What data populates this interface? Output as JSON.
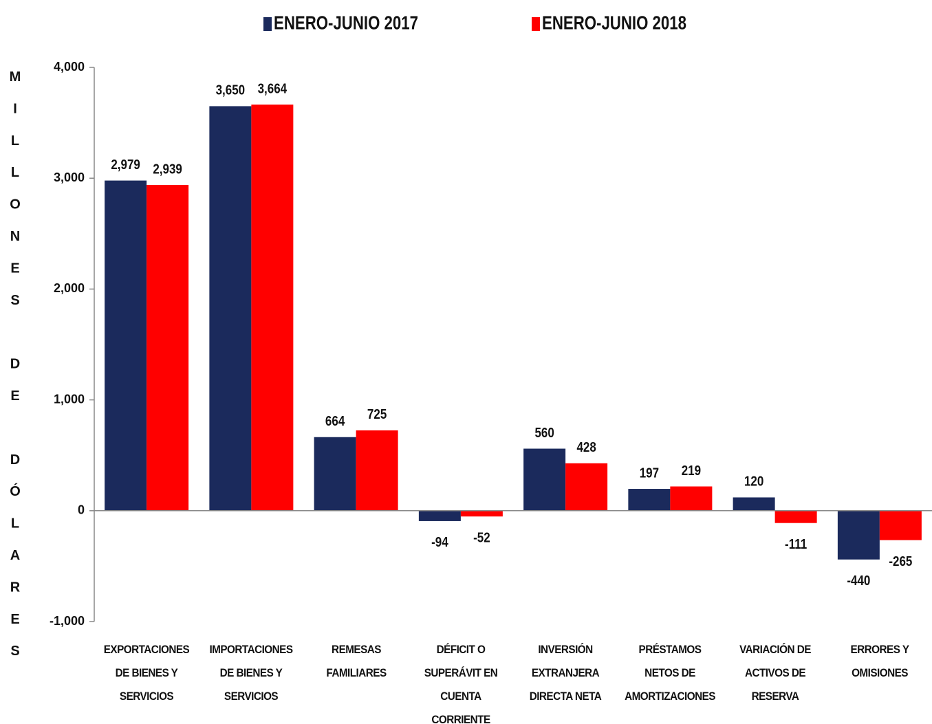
{
  "chart_data": {
    "type": "bar",
    "y_label": "MILLONES DE DÓLARES",
    "categories": [
      "EXPORTACIONES DE BIENES Y SERVICIOS",
      "IMPORTACIONES DE BIENES Y SERVICIOS",
      "REMESAS FAMILIARES",
      "DÉFICIT O SUPERÁVIT EN CUENTA CORRIENTE",
      "INVERSIÓN EXTRANJERA DIRECTA NETA",
      "PRÉSTAMOS NETOS DE AMORTIZACIONES",
      "VARIACIÓN DE ACTIVOS DE RESERVA",
      "ERRORES Y OMISIONES"
    ],
    "series": [
      {
        "name": "ENERO-JUNIO 2017",
        "color": "#1b2a5c",
        "values": [
          2979,
          3650,
          664,
          -94,
          560,
          197,
          120,
          -440
        ],
        "value_labels": [
          "2,979",
          "3,650",
          "664",
          "-94",
          "560",
          "197",
          "120",
          "-440"
        ]
      },
      {
        "name": "ENERO-JUNIO 2018",
        "color": "#ff0000",
        "values": [
          2939,
          3664,
          725,
          -52,
          428,
          219,
          -111,
          -265
        ],
        "value_labels": [
          "2,939",
          "3,664",
          "725",
          "-52",
          "428",
          "219",
          "-111",
          "-265"
        ]
      }
    ],
    "ylim": [
      -1000,
      4000
    ],
    "yticks": [
      {
        "value": -1000,
        "label": "-1,000"
      },
      0,
      {
        "value": 1000,
        "label": "1,000"
      },
      {
        "value": 2000,
        "label": "2,000"
      },
      {
        "value": 3000,
        "label": "3,000"
      },
      {
        "value": 4000,
        "label": "4,000"
      }
    ],
    "legend": "top"
  }
}
